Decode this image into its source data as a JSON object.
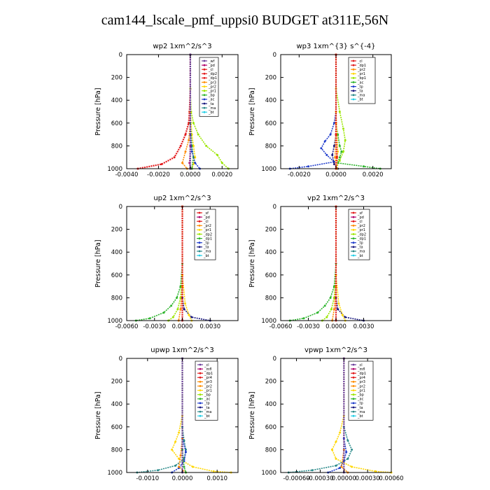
{
  "title": "cam144_lscale_pmf_uppsi0  BUDGET at311E,56N",
  "colors": {
    "purple": "#6a3d9a",
    "magenta": "#b0006b",
    "red": "#e31a1c",
    "orange": "#ff8c00",
    "yellow": "#ffd700",
    "lightgreen": "#9be600",
    "green": "#2cb42c",
    "blue": "#1f3ccc",
    "navy": "#1a1a80",
    "teal": "#2a8a8a",
    "cyan": "#22cfe6"
  },
  "chart_data": [
    {
      "type": "line",
      "title": "wp2   1xm^2/s^3",
      "ylabel": "Pressure [hPa]",
      "xlim": [
        -0.004,
        0.003
      ],
      "ylim": [
        1000,
        0
      ],
      "xticks": [
        -0.004,
        -0.002,
        0.0,
        0.002
      ],
      "xtick_labels": [
        "-0.0040",
        "-0.0020",
        "0.0000",
        "0.0020"
      ],
      "yticks": [
        0,
        200,
        400,
        600,
        800,
        1000
      ],
      "legend": [
        "_wf",
        "_pd",
        "_cl",
        "_dp2",
        "_dp1",
        "_pr3",
        "_pr2",
        "_pr1",
        "_bp",
        "_ac",
        "_ta",
        "_ma",
        "_bt"
      ],
      "legend_colors": [
        "purple",
        "magenta",
        "red",
        "red",
        "red",
        "orange",
        "yellow",
        "lightgreen",
        "green",
        "blue",
        "navy",
        "teal",
        "cyan"
      ],
      "series": [
        {
          "color": "red",
          "x": [
            0,
            0,
            -5e-05,
            -0.0001,
            -0.0003,
            -0.0006,
            -0.001,
            -0.0018,
            -0.0033
          ],
          "y": [
            0,
            300,
            500,
            600,
            700,
            800,
            900,
            960,
            1000
          ]
        },
        {
          "color": "lightgreen",
          "x": [
            0,
            0,
            5e-05,
            0.0002,
            0.0005,
            0.001,
            0.0017,
            0.002,
            0.0024
          ],
          "y": [
            0,
            300,
            500,
            600,
            700,
            800,
            880,
            950,
            1000
          ]
        },
        {
          "color": "yellow",
          "x": [
            0,
            0,
            0.0001,
            0.0002,
            0.0003,
            0.0002,
            0.0001
          ],
          "y": [
            0,
            500,
            700,
            800,
            900,
            960,
            1000
          ]
        },
        {
          "color": "orange",
          "x": [
            0,
            0,
            -0.0001,
            -0.0003,
            -0.0005,
            -0.0002
          ],
          "y": [
            0,
            600,
            750,
            850,
            950,
            1000
          ]
        },
        {
          "color": "green",
          "x": [
            0,
            0,
            0.0001,
            0.0002,
            0.0001
          ],
          "y": [
            0,
            600,
            800,
            900,
            1000
          ]
        },
        {
          "color": "blue",
          "x": [
            0,
            0,
            0.0001,
            0.0003,
            0.0006
          ],
          "y": [
            0,
            700,
            850,
            950,
            1000
          ]
        },
        {
          "color": "magenta",
          "x": [
            0,
            0,
            -5e-05,
            0
          ],
          "y": [
            0,
            800,
            950,
            1000
          ]
        },
        {
          "color": "purple",
          "x": [
            0,
            0
          ],
          "y": [
            0,
            1000
          ]
        }
      ]
    },
    {
      "type": "line",
      "title": "wp3   1xm^{3} s^{-4}",
      "ylabel": "Pressure [hPa]",
      "xlim": [
        -0.003,
        0.003
      ],
      "ylim": [
        1000,
        0
      ],
      "xticks": [
        -0.002,
        0.0,
        0.002
      ],
      "xtick_labels": [
        "-0.0020",
        "0.0000",
        "0.0020"
      ],
      "yticks": [
        0,
        200,
        400,
        600,
        800,
        1000
      ],
      "legend": [
        "_cl",
        "_dp1",
        "_pr2",
        "_pr1",
        "_bp1",
        "_ac",
        "_tp",
        "_ta",
        "_ma",
        "_bt"
      ],
      "legend_colors": [
        "red",
        "red",
        "orange",
        "yellow",
        "lightgreen",
        "green",
        "blue",
        "navy",
        "teal",
        "cyan"
      ],
      "series": [
        {
          "color": "blue",
          "x": [
            0,
            0,
            -0.0001,
            -0.0003,
            -0.0006,
            -0.0008,
            -0.0005,
            -0.0001,
            -0.0015,
            -0.0025
          ],
          "y": [
            0,
            500,
            600,
            700,
            760,
            820,
            880,
            940,
            980,
            1000
          ]
        },
        {
          "color": "lightgreen",
          "x": [
            0,
            0,
            0.0002,
            0.0004,
            0.0005,
            0.0004,
            0.0002,
            0.0
          ],
          "y": [
            0,
            300,
            500,
            650,
            750,
            850,
            930,
            1000
          ]
        },
        {
          "color": "green",
          "x": [
            0,
            0,
            0.0001,
            0.0002,
            0.0003,
            0.0002,
            0.0001,
            0.0015,
            0.0024
          ],
          "y": [
            0,
            600,
            700,
            800,
            850,
            900,
            950,
            980,
            1000
          ]
        },
        {
          "color": "navy",
          "x": [
            0,
            0,
            -0.0001,
            -0.0002,
            -0.0001,
            0.0001
          ],
          "y": [
            0,
            700,
            800,
            880,
            960,
            1000
          ]
        },
        {
          "color": "yellow",
          "x": [
            0,
            0,
            0.0001,
            5e-05
          ],
          "y": [
            0,
            500,
            850,
            1000
          ]
        },
        {
          "color": "orange",
          "x": [
            0,
            0,
            -5e-05,
            0
          ],
          "y": [
            0,
            600,
            900,
            1000
          ]
        },
        {
          "color": "red",
          "x": [
            0,
            0,
            5e-05,
            0
          ],
          "y": [
            0,
            700,
            900,
            1000
          ]
        }
      ]
    },
    {
      "type": "line",
      "title": "up2   1xm^2/s^3",
      "ylabel": "Pressure [hPa]",
      "xlim": [
        -0.006,
        0.006
      ],
      "ylim": [
        1000,
        0
      ],
      "xticks": [
        -0.006,
        -0.003,
        0.0,
        0.003
      ],
      "xtick_labels": [
        "-0.0060",
        "-0.0030",
        "0.0000",
        "0.0030"
      ],
      "yticks": [
        0,
        200,
        400,
        600,
        800,
        1000
      ],
      "legend": [
        "_sf",
        "_pd",
        "_cl",
        "_pr2",
        "_pr1",
        "_dp2",
        "_dp1",
        "_tp",
        "_ta",
        "_ma",
        "_bt"
      ],
      "legend_colors": [
        "red",
        "magenta",
        "red",
        "orange",
        "yellow",
        "lightgreen",
        "green",
        "blue",
        "navy",
        "teal",
        "cyan"
      ],
      "series": [
        {
          "color": "green",
          "x": [
            0,
            0,
            -0.0002,
            -0.0006,
            -0.0012,
            -0.002,
            -0.0035,
            -0.005
          ],
          "y": [
            0,
            500,
            700,
            800,
            870,
            930,
            980,
            1000
          ]
        },
        {
          "color": "lightgreen",
          "x": [
            0,
            0,
            -0.0002,
            -0.0005,
            -0.001,
            -0.0015
          ],
          "y": [
            0,
            600,
            800,
            900,
            970,
            1000
          ]
        },
        {
          "color": "navy",
          "x": [
            0,
            0,
            0.0002,
            0.001,
            0.003
          ],
          "y": [
            0,
            800,
            900,
            970,
            1000
          ]
        },
        {
          "color": "yellow",
          "x": [
            0,
            0,
            0.0003,
            0.0007,
            0.001
          ],
          "y": [
            0,
            600,
            850,
            950,
            1000
          ]
        },
        {
          "color": "orange",
          "x": [
            0,
            0,
            -0.0002,
            -0.0004
          ],
          "y": [
            0,
            700,
            900,
            1000
          ]
        },
        {
          "color": "red",
          "x": [
            0,
            0
          ],
          "y": [
            0,
            1000
          ]
        }
      ]
    },
    {
      "type": "line",
      "title": "vp2   1xm^2/s^3",
      "ylabel": "Pressure [hPa]",
      "xlim": [
        -0.006,
        0.006
      ],
      "ylim": [
        1000,
        0
      ],
      "xticks": [
        -0.006,
        -0.003,
        0.0,
        0.003
      ],
      "xtick_labels": [
        "-0.0060",
        "-0.0030",
        "0.0000",
        "0.0030"
      ],
      "yticks": [
        0,
        200,
        400,
        600,
        800,
        1000
      ],
      "legend": [
        "_sf",
        "_pd",
        "_cl",
        "_pr2",
        "_pr1",
        "_dp2",
        "_dp1",
        "_tp",
        "_ta",
        "_ma",
        "_bt"
      ],
      "legend_colors": [
        "red",
        "magenta",
        "red",
        "orange",
        "yellow",
        "lightgreen",
        "green",
        "blue",
        "navy",
        "teal",
        "cyan"
      ],
      "series": [
        {
          "color": "green",
          "x": [
            0,
            0,
            -0.0002,
            -0.0006,
            -0.0012,
            -0.002,
            -0.0035,
            -0.005
          ],
          "y": [
            0,
            500,
            700,
            800,
            870,
            930,
            980,
            1000
          ]
        },
        {
          "color": "lightgreen",
          "x": [
            0,
            0,
            -0.0002,
            -0.0005,
            -0.001,
            -0.0015
          ],
          "y": [
            0,
            600,
            800,
            900,
            970,
            1000
          ]
        },
        {
          "color": "navy",
          "x": [
            0,
            0,
            0.0002,
            0.001,
            0.003
          ],
          "y": [
            0,
            800,
            900,
            970,
            1000
          ]
        },
        {
          "color": "yellow",
          "x": [
            0,
            0,
            0.0003,
            0.0007,
            0.001
          ],
          "y": [
            0,
            600,
            850,
            950,
            1000
          ]
        },
        {
          "color": "orange",
          "x": [
            0,
            0,
            -0.0002,
            -0.0004
          ],
          "y": [
            0,
            700,
            900,
            1000
          ]
        },
        {
          "color": "red",
          "x": [
            0,
            0
          ],
          "y": [
            0,
            1000
          ]
        }
      ]
    },
    {
      "type": "line",
      "title": "upwp   1xm^2/s^3",
      "ylabel": "Pressure [hPa]",
      "xlim": [
        -0.0016,
        0.0016
      ],
      "ylim": [
        1000,
        0
      ],
      "xticks": [
        -0.001,
        0.0,
        0.001
      ],
      "xtick_labels": [
        "-0.0010",
        "0.0000",
        "0.0010"
      ],
      "yticks": [
        0,
        200,
        400,
        600,
        800,
        1000
      ],
      "legend": [
        "_cl",
        "_mfl",
        "_dp1",
        "_pr4",
        "_pr3",
        "_pr2",
        "_pr1",
        "_bp",
        "_ac",
        "_tp",
        "_ta",
        "_ma",
        "_bt"
      ],
      "legend_colors": [
        "purple",
        "magenta",
        "red",
        "red",
        "orange",
        "orange",
        "yellow",
        "lightgreen",
        "green",
        "blue",
        "navy",
        "teal",
        "cyan"
      ],
      "series": [
        {
          "color": "yellow",
          "x": [
            0,
            0,
            -0.0001,
            -0.0002,
            -0.0003,
            -0.0001,
            0.0003,
            0.0009,
            0.0014
          ],
          "y": [
            0,
            500,
            650,
            730,
            800,
            880,
            950,
            990,
            1000
          ]
        },
        {
          "color": "teal",
          "x": [
            0,
            0,
            5e-05,
            0.0001,
            5e-05,
            -0.0002,
            -0.0007,
            -0.0013
          ],
          "y": [
            0,
            600,
            720,
            800,
            880,
            940,
            980,
            1000
          ]
        },
        {
          "color": "blue",
          "x": [
            0,
            0,
            0.0001,
            5e-05,
            -0.0001,
            -0.0003
          ],
          "y": [
            0,
            700,
            820,
            900,
            960,
            1000
          ]
        },
        {
          "color": "orange",
          "x": [
            0,
            0,
            -5e-05,
            -0.0001,
            0.0001
          ],
          "y": [
            0,
            700,
            850,
            950,
            1000
          ]
        },
        {
          "color": "green",
          "x": [
            0,
            0,
            5e-05,
            0.0001
          ],
          "y": [
            0,
            800,
            950,
            1000
          ]
        },
        {
          "color": "purple",
          "x": [
            0,
            0
          ],
          "y": [
            0,
            1000
          ]
        }
      ]
    },
    {
      "type": "line",
      "title": "vpwp   1xm^2/s^3",
      "ylabel": "Pressure [hPa]",
      "xlim": [
        -0.0008,
        0.0006
      ],
      "ylim": [
        1000,
        0
      ],
      "xticks": [
        -0.0006,
        -0.0003,
        0.0,
        0.0003,
        0.0006
      ],
      "xtick_labels": [
        "-0.00060",
        "-0.00030",
        "0.00000",
        "0.00030",
        "0.00060"
      ],
      "yticks": [
        0,
        200,
        400,
        600,
        800,
        1000
      ],
      "legend": [
        "_cl",
        "_mfl",
        "_dp1",
        "_pr4",
        "_pr3",
        "_pr2",
        "_pr1",
        "_bp",
        "_ac",
        "_tp",
        "_ta",
        "_ma",
        "_bt"
      ],
      "legend_colors": [
        "purple",
        "magenta",
        "red",
        "red",
        "orange",
        "orange",
        "yellow",
        "lightgreen",
        "green",
        "blue",
        "navy",
        "teal",
        "cyan"
      ],
      "series": [
        {
          "color": "yellow",
          "x": [
            0,
            0,
            -5e-05,
            -0.0001,
            -0.00015,
            -0.0001,
            0.0001,
            0.0004,
            0.0006
          ],
          "y": [
            0,
            500,
            650,
            730,
            800,
            880,
            950,
            990,
            1000
          ]
        },
        {
          "color": "teal",
          "x": [
            0,
            0,
            5e-05,
            0.0001,
            5e-05,
            -0.0001,
            -0.0004,
            -0.0007
          ],
          "y": [
            0,
            600,
            720,
            800,
            880,
            940,
            980,
            1000
          ]
        },
        {
          "color": "blue",
          "x": [
            0,
            0,
            3e-05,
            0.0,
            -5e-05,
            -0.0002
          ],
          "y": [
            0,
            700,
            820,
            900,
            960,
            1000
          ]
        },
        {
          "color": "orange",
          "x": [
            0,
            0,
            -3e-05,
            5e-05
          ],
          "y": [
            0,
            800,
            950,
            1000
          ]
        },
        {
          "color": "purple",
          "x": [
            0,
            0
          ],
          "y": [
            0,
            1000
          ]
        }
      ]
    }
  ]
}
